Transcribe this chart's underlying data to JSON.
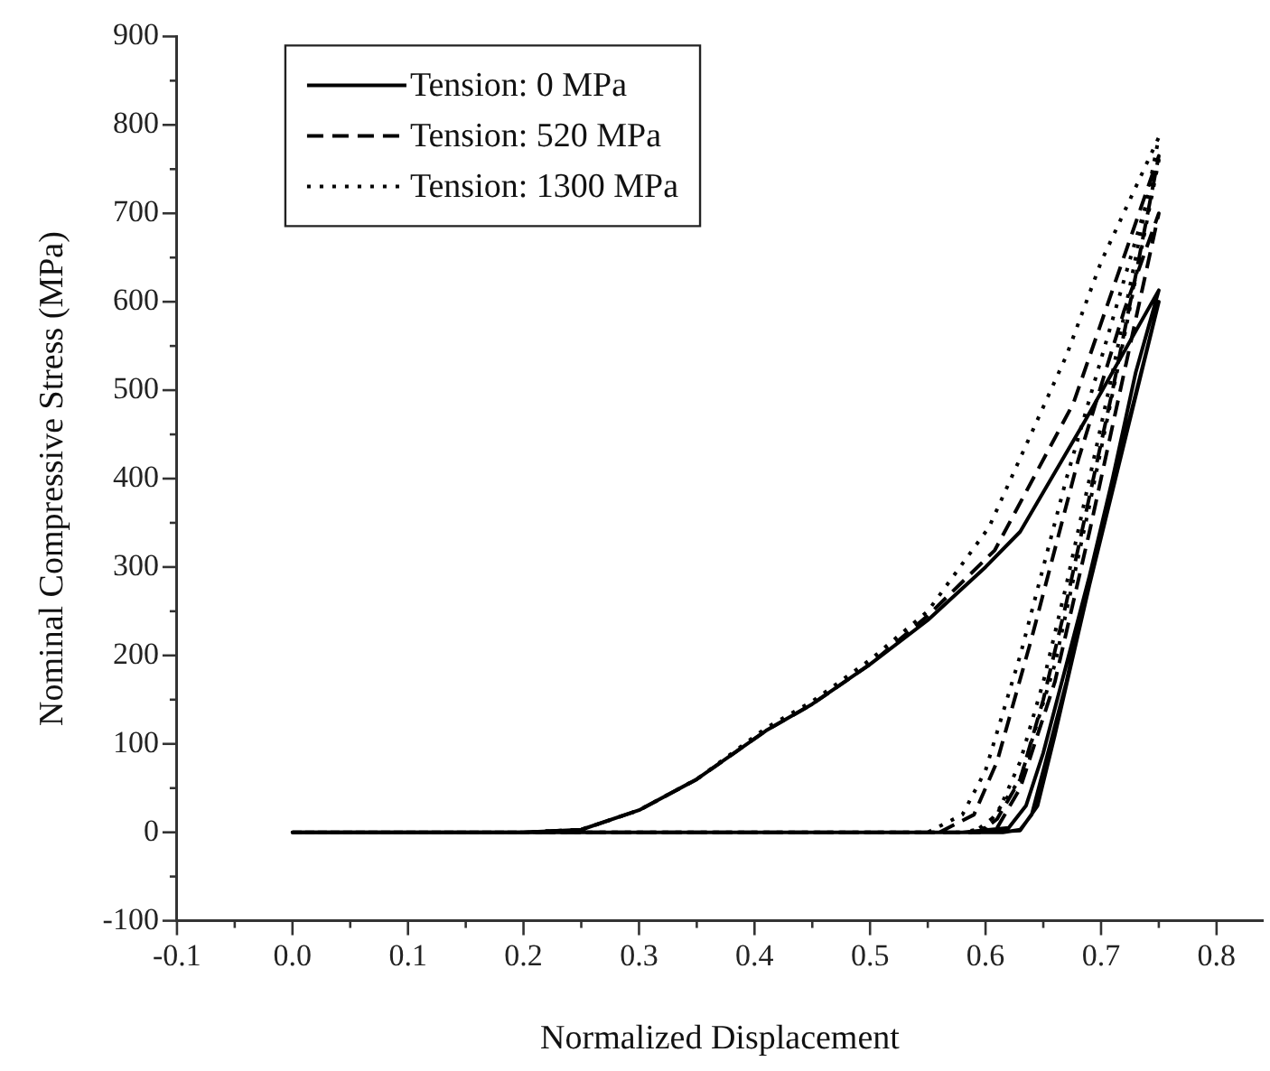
{
  "chart_data": {
    "type": "line",
    "xlabel": "Normalized Displacement",
    "ylabel": "Nominal Compressive Stress (MPa)",
    "xlim": [
      -0.1,
      0.84
    ],
    "ylim": [
      -100,
      900
    ],
    "xticks": [
      -0.1,
      {
        "value": -0.05,
        "label": null
      },
      {
        "value": 0,
        "label": "0.0"
      },
      {
        "value": 0.05,
        "label": null
      },
      0.1,
      {
        "value": 0.15,
        "label": null
      },
      0.2,
      {
        "value": 0.25,
        "label": null
      },
      0.3,
      {
        "value": 0.35,
        "label": null
      },
      0.4,
      {
        "value": 0.45,
        "label": null
      },
      0.5,
      {
        "value": 0.55,
        "label": null
      },
      0.6,
      {
        "value": 0.65,
        "label": null
      },
      0.7,
      {
        "value": 0.75,
        "label": null
      },
      0.8
    ],
    "yticks": [
      -100,
      {
        "value": -50,
        "label": null
      },
      0,
      {
        "value": 50,
        "label": null
      },
      100,
      {
        "value": 150,
        "label": null
      },
      200,
      {
        "value": 250,
        "label": null
      },
      300,
      {
        "value": 350,
        "label": null
      },
      400,
      {
        "value": 450,
        "label": null
      },
      500,
      {
        "value": 550,
        "label": null
      },
      600,
      {
        "value": 650,
        "label": null
      },
      700,
      {
        "value": 750,
        "label": null
      },
      800,
      {
        "value": 850,
        "label": null
      },
      900
    ],
    "grid": false,
    "legend": "top left",
    "marker": "none",
    "series": [
      {
        "name": "Tension: 0 MPa",
        "color": "#000000",
        "line_style": "solid",
        "x": [
          0,
          0.2,
          0.25,
          0.3,
          0.35,
          0.41,
          0.45,
          0.5,
          0.55,
          0.6,
          0.63,
          0.686,
          0.75,
          0.73,
          0.71,
          0.69,
          0.67,
          0.65,
          0.64,
          0.63,
          0.615,
          0,
          0.58,
          0.62,
          0.635,
          0.65,
          0.67,
          0.7,
          0.75,
          0.72,
          0.69,
          0.66,
          0.645,
          0.63,
          0.6
        ],
        "values": [
          0,
          0,
          3,
          25,
          60,
          115,
          145,
          190,
          240,
          300,
          340,
          465,
          613,
          520,
          400,
          290,
          170,
          70,
          20,
          3,
          0,
          0,
          0,
          5,
          30,
          90,
          190,
          340,
          600,
          440,
          280,
          110,
          30,
          2,
          0
        ]
      },
      {
        "name": "Tension: 520 MPa",
        "color": "#000000",
        "line_style": "dashed",
        "x": [
          0,
          0.2,
          0.25,
          0.3,
          0.35,
          0.41,
          0.45,
          0.5,
          0.55,
          0.608,
          0.676,
          0.75,
          0.73,
          0.71,
          0.69,
          0.67,
          0.65,
          0.63,
          0.61,
          0.595,
          0,
          0.56,
          0.59,
          0.61,
          0.64,
          0.68,
          0.72,
          0.75,
          0.72,
          0.69,
          0.66,
          0.63,
          0.61,
          0.59
        ],
        "values": [
          0,
          0,
          3,
          25,
          60,
          115,
          145,
          190,
          245,
          319,
          485,
          765,
          630,
          500,
          380,
          260,
          150,
          60,
          15,
          0,
          0,
          0,
          20,
          80,
          220,
          420,
          590,
          700,
          520,
          340,
          170,
          50,
          5,
          0
        ]
      },
      {
        "name": "Tension: 1300 MPa",
        "color": "#000000",
        "line_style": "dotted",
        "x": [
          0,
          0.2,
          0.25,
          0.3,
          0.35,
          0.41,
          0.45,
          0.5,
          0.55,
          0.603,
          0.67,
          0.7,
          0.75,
          0.73,
          0.71,
          0.69,
          0.67,
          0.65,
          0.63,
          0.61,
          0.59,
          0,
          0.55,
          0.58,
          0.6,
          0.63,
          0.67,
          0.71,
          0.75,
          0.72,
          0.69,
          0.66,
          0.63,
          0.6,
          0.58
        ],
        "values": [
          0,
          0,
          3,
          25,
          60,
          118,
          148,
          195,
          250,
          345,
          539,
          645,
          786,
          650,
          520,
          400,
          280,
          170,
          80,
          20,
          0,
          0,
          0,
          20,
          70,
          200,
          400,
          580,
          760,
          560,
          370,
          190,
          60,
          5,
          0
        ]
      }
    ]
  }
}
